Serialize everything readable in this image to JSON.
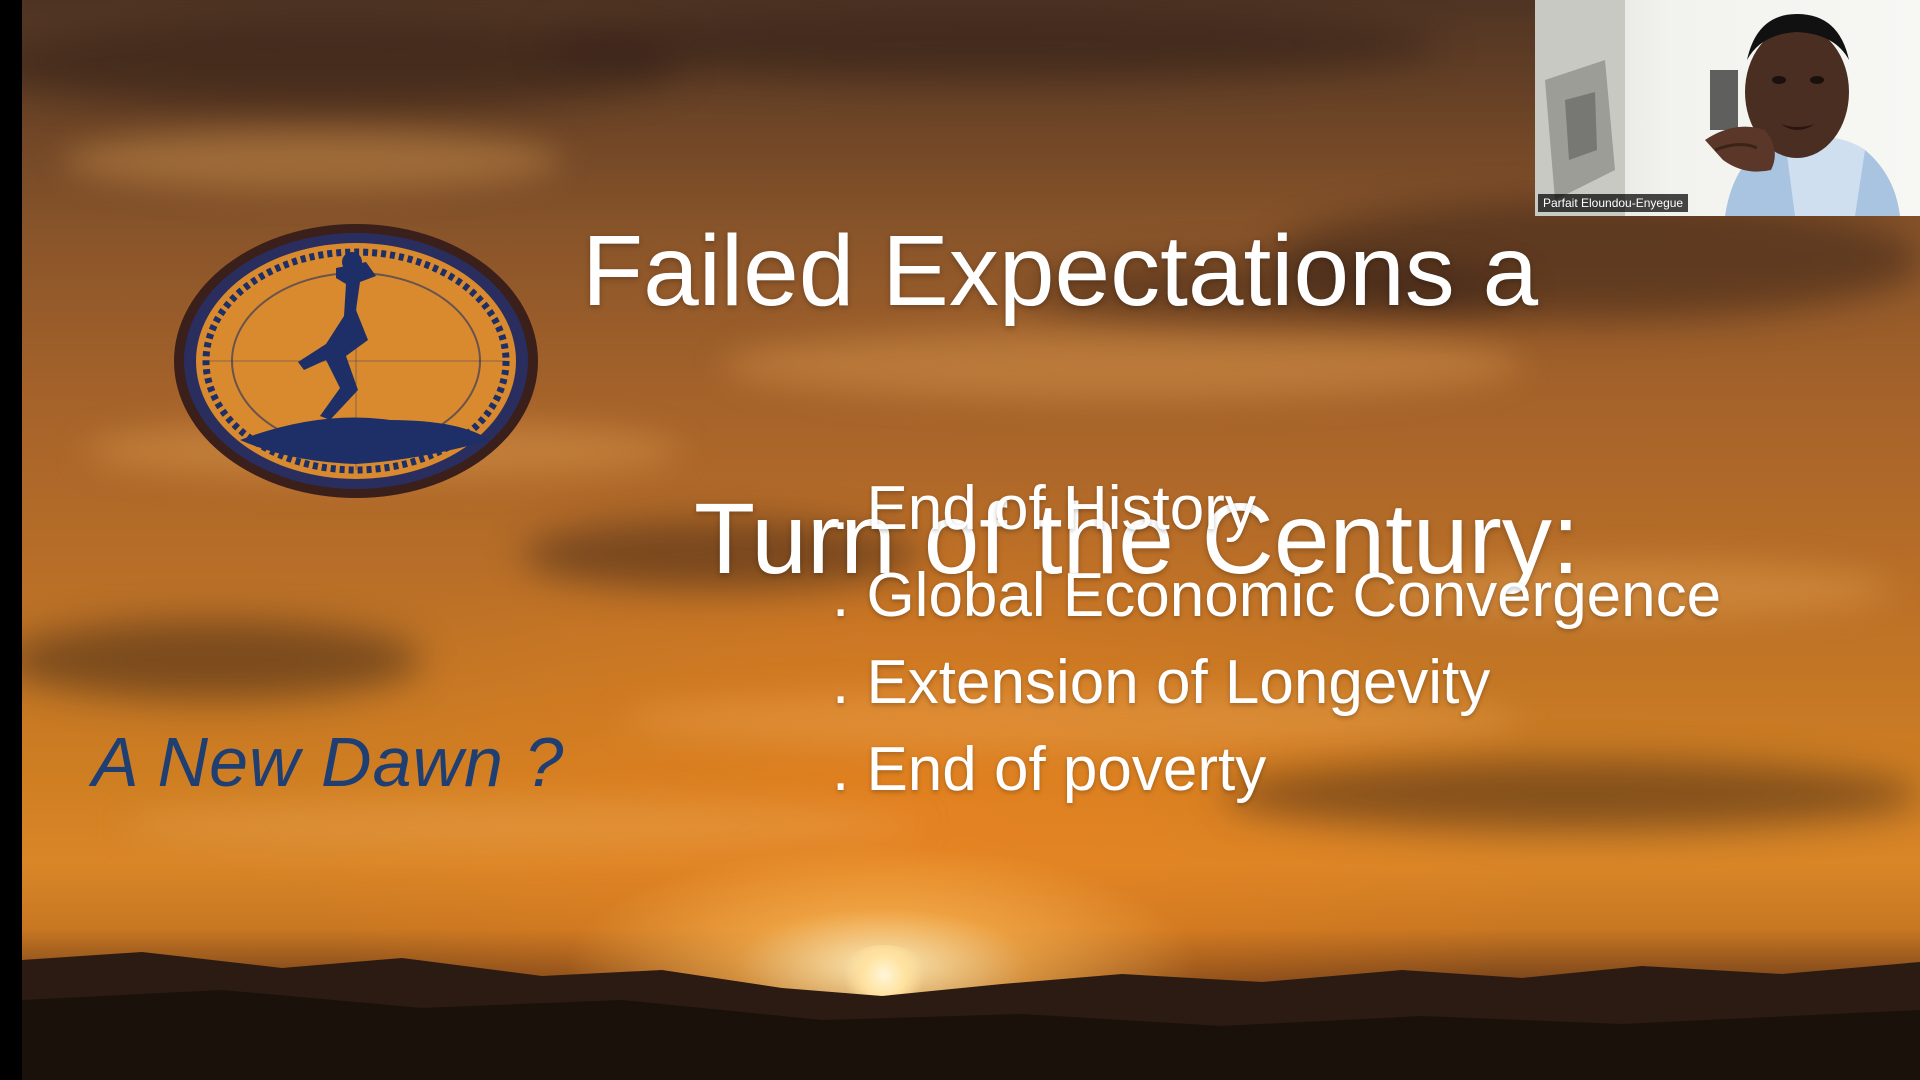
{
  "slide": {
    "title_line1": "Failed Expectations a",
    "title_line2": "Turn  of the Century:",
    "bullets": [
      ". End of History",
      ". Global Economic Convergence",
      ". Extension of Longevity",
      ". End of poverty"
    ],
    "tagline": "A New Dawn ?",
    "emblem_icon": "runner-emblem-icon",
    "colors": {
      "title_text": "#ffffff",
      "tagline_text": "#1f3f72",
      "emblem_fill": "#d98a2e",
      "emblem_ring": "#1d2f66"
    }
  },
  "video": {
    "participant_name": "Parfait Eloundou-Enyegue"
  }
}
